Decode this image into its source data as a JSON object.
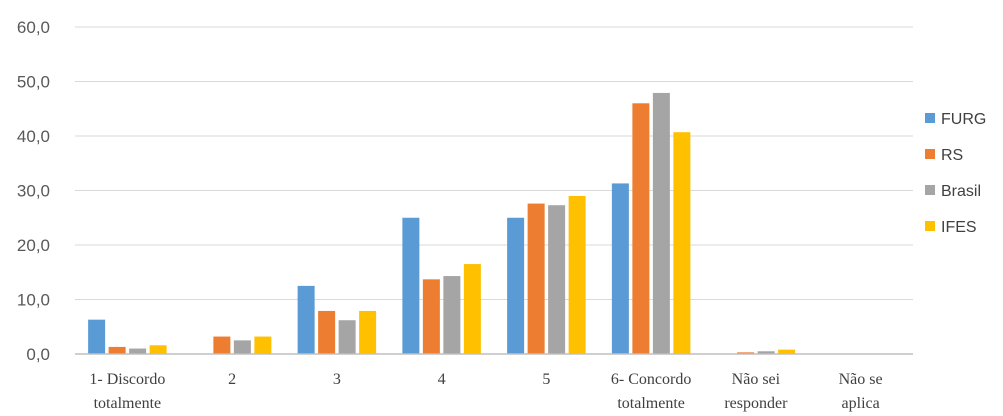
{
  "chart_data": {
    "type": "bar",
    "categories": [
      [
        "1- Discordo",
        "totalmente"
      ],
      [
        "2"
      ],
      [
        "3"
      ],
      [
        "4"
      ],
      [
        "5"
      ],
      [
        "6- Concordo",
        "totalmente"
      ],
      [
        "Não sei",
        "responder"
      ],
      [
        "Não se",
        "aplica"
      ]
    ],
    "series": [
      {
        "name": "FURG",
        "color": "#5b9bd5",
        "values": [
          6.3,
          0.0,
          12.5,
          25.0,
          25.0,
          31.3,
          0.0,
          0.0
        ]
      },
      {
        "name": "RS",
        "color": "#ed7d31",
        "values": [
          1.3,
          3.2,
          7.9,
          13.7,
          27.6,
          46.0,
          0.3,
          0.0
        ]
      },
      {
        "name": "Brasil",
        "color": "#a5a5a5",
        "values": [
          1.0,
          2.5,
          6.2,
          14.3,
          27.3,
          47.9,
          0.5,
          0.0
        ]
      },
      {
        "name": "IFES",
        "color": "#ffc000",
        "values": [
          1.6,
          3.2,
          7.9,
          16.5,
          29.0,
          40.7,
          0.8,
          0.0
        ]
      }
    ],
    "yticks": [
      "0,0",
      "10,0",
      "20,0",
      "30,0",
      "40,0",
      "50,0",
      "60,0"
    ],
    "ylim": [
      0,
      60
    ],
    "grid": true,
    "legend": "right",
    "title": "",
    "xlabel": "",
    "ylabel": ""
  }
}
